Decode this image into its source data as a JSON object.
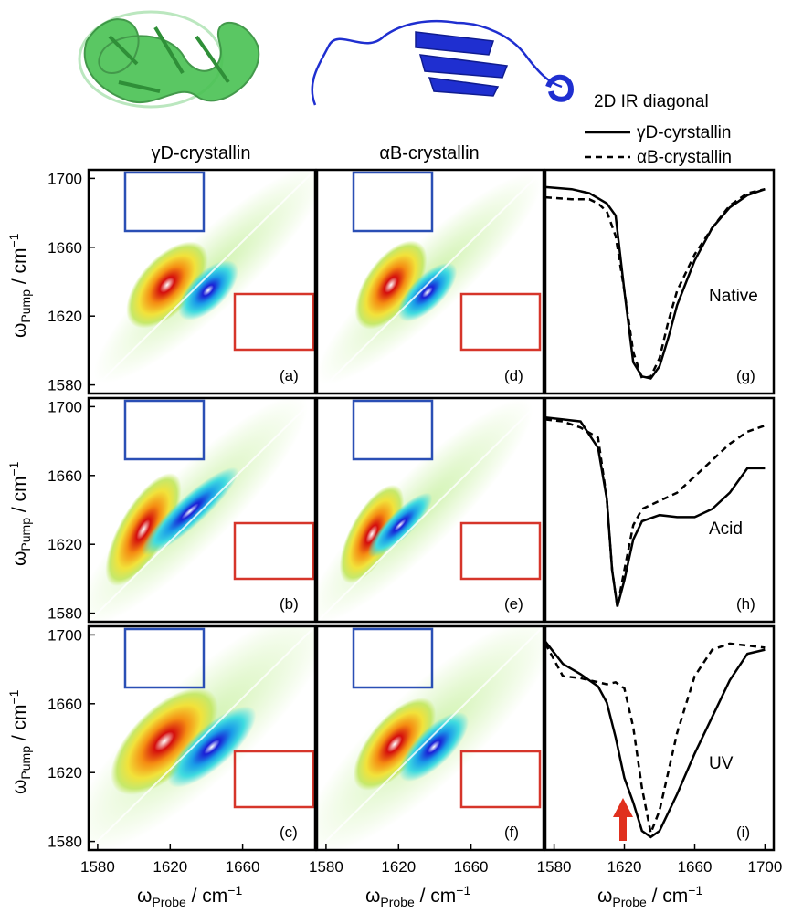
{
  "figure": {
    "column_titles": [
      "γD-crystallin",
      "αB-crystallin"
    ],
    "legend": {
      "title": "2D IR diagonal",
      "entries": [
        {
          "label": "γD-cyrstallin",
          "style": "solid"
        },
        {
          "label": "αB-crystallin",
          "style": "dashed"
        }
      ]
    },
    "conditions": [
      "Native",
      "Acid",
      "UV"
    ],
    "axis": {
      "y_label_main": "ω",
      "y_label_sub": "Pump",
      "y_label_unit": " / cm",
      "y_label_sup": "−1",
      "x_label_main": "ω",
      "x_label_sub": "Probe",
      "x_label_unit": " / cm",
      "x_label_sup": "−1",
      "y_ticks": [
        "1700",
        "1660",
        "1620",
        "1580"
      ],
      "x_ticks_2d": [
        "1580",
        "1620",
        "1660"
      ],
      "x_ticks_right": [
        "1580",
        "1620",
        "1660",
        "1700"
      ]
    },
    "colors": {
      "blue_box": "#2a4fb5",
      "red_box": "#d6352a",
      "protein_gamma": "#3dbb48",
      "protein_alpha": "#1f2fd0",
      "arrow": "#e0301e"
    }
  },
  "chart_data": [
    {
      "type": "heatmap",
      "panel_label": "(a)",
      "sample": "γD-crystallin",
      "condition": "Native",
      "xlim": [
        1575,
        1700
      ],
      "ylim": [
        1575,
        1705
      ],
      "bleach_center": [
        1622,
        1640
      ],
      "induced_center": [
        1642,
        1636
      ]
    },
    {
      "type": "heatmap",
      "panel_label": "(b)",
      "sample": "γD-crystallin",
      "condition": "Acid",
      "xlim": [
        1575,
        1700
      ],
      "ylim": [
        1575,
        1705
      ],
      "bleach_center": [
        1606,
        1622
      ],
      "induced_center": [
        1620,
        1620
      ]
    },
    {
      "type": "heatmap",
      "panel_label": "(c)",
      "sample": "γD-crystallin",
      "condition": "UV",
      "xlim": [
        1575,
        1700
      ],
      "ylim": [
        1575,
        1705
      ],
      "bleach_center": [
        1620,
        1640
      ],
      "induced_center": [
        1645,
        1636
      ]
    },
    {
      "type": "heatmap",
      "panel_label": "(d)",
      "sample": "αB-crystallin",
      "condition": "Native",
      "xlim": [
        1575,
        1700
      ],
      "ylim": [
        1575,
        1705
      ],
      "bleach_center": [
        1618,
        1638
      ],
      "induced_center": [
        1637,
        1633
      ]
    },
    {
      "type": "heatmap",
      "panel_label": "(e)",
      "sample": "αB-crystallin",
      "condition": "Acid",
      "xlim": [
        1575,
        1700
      ],
      "ylim": [
        1575,
        1705
      ],
      "bleach_center": [
        1605,
        1620
      ],
      "induced_center": [
        1620,
        1620
      ]
    },
    {
      "type": "heatmap",
      "panel_label": "(f)",
      "sample": "αB-crystallin",
      "condition": "UV",
      "xlim": [
        1575,
        1700
      ],
      "ylim": [
        1575,
        1705
      ],
      "bleach_center": [
        1622,
        1638
      ],
      "induced_center": [
        1642,
        1636
      ]
    },
    {
      "type": "line",
      "panel_label": "(g)",
      "annotation": "Native",
      "xlim": [
        1575,
        1705
      ],
      "series": [
        {
          "name": "γD-cyrstallin",
          "style": "solid",
          "x": [
            1575,
            1590,
            1600,
            1610,
            1615,
            1620,
            1625,
            1630,
            1635,
            1640,
            1645,
            1650,
            1660,
            1670,
            1680,
            1690,
            1700
          ],
          "y": [
            0.96,
            0.95,
            0.93,
            0.88,
            0.82,
            0.45,
            0.1,
            0.03,
            0.02,
            0.08,
            0.22,
            0.38,
            0.6,
            0.76,
            0.86,
            0.92,
            0.95
          ]
        },
        {
          "name": "αB-crystallin",
          "style": "dashed",
          "x": [
            1575,
            1590,
            1600,
            1605,
            1610,
            1615,
            1620,
            1625,
            1630,
            1635,
            1640,
            1645,
            1650,
            1660,
            1670,
            1680,
            1690,
            1700
          ],
          "y": [
            0.91,
            0.9,
            0.9,
            0.88,
            0.84,
            0.72,
            0.45,
            0.15,
            0.02,
            0.03,
            0.12,
            0.3,
            0.45,
            0.63,
            0.76,
            0.87,
            0.93,
            0.95
          ]
        }
      ]
    },
    {
      "type": "line",
      "panel_label": "(h)",
      "annotation": "Acid",
      "xlim": [
        1575,
        1705
      ],
      "series": [
        {
          "name": "γD-cyrstallin",
          "style": "solid",
          "x": [
            1575,
            1585,
            1595,
            1605,
            1610,
            1613,
            1616,
            1620,
            1625,
            1630,
            1640,
            1650,
            1660,
            1670,
            1680,
            1690,
            1700
          ],
          "y": [
            0.95,
            0.94,
            0.93,
            0.8,
            0.55,
            0.2,
            0.02,
            0.15,
            0.35,
            0.44,
            0.47,
            0.46,
            0.46,
            0.5,
            0.58,
            0.7,
            0.7
          ]
        },
        {
          "name": "αB-crystallin",
          "style": "dashed",
          "x": [
            1575,
            1585,
            1595,
            1605,
            1610,
            1613,
            1616,
            1620,
            1625,
            1630,
            1640,
            1650,
            1660,
            1670,
            1680,
            1690,
            1700
          ],
          "y": [
            0.94,
            0.93,
            0.9,
            0.85,
            0.55,
            0.2,
            0.02,
            0.2,
            0.42,
            0.5,
            0.54,
            0.58,
            0.66,
            0.74,
            0.82,
            0.88,
            0.91
          ]
        }
      ]
    },
    {
      "type": "line",
      "panel_label": "(i)",
      "annotation": "UV",
      "xlim": [
        1575,
        1705
      ],
      "series": [
        {
          "name": "γD-cyrstallin",
          "style": "solid",
          "x": [
            1575,
            1585,
            1595,
            1605,
            1610,
            1615,
            1620,
            1625,
            1630,
            1635,
            1640,
            1650,
            1660,
            1670,
            1680,
            1690,
            1700
          ],
          "y": [
            0.97,
            0.86,
            0.81,
            0.75,
            0.67,
            0.5,
            0.3,
            0.18,
            0.04,
            0.01,
            0.04,
            0.22,
            0.42,
            0.6,
            0.78,
            0.91,
            0.93
          ]
        },
        {
          "name": "αB-crystallin",
          "style": "dashed",
          "x": [
            1575,
            1585,
            1595,
            1605,
            1610,
            1615,
            1620,
            1625,
            1630,
            1635,
            1640,
            1650,
            1660,
            1670,
            1680,
            1690,
            1700
          ],
          "y": [
            0.96,
            0.8,
            0.79,
            0.77,
            0.76,
            0.77,
            0.74,
            0.55,
            0.25,
            0.03,
            0.14,
            0.52,
            0.8,
            0.93,
            0.96,
            0.95,
            0.94
          ]
        }
      ]
    }
  ]
}
